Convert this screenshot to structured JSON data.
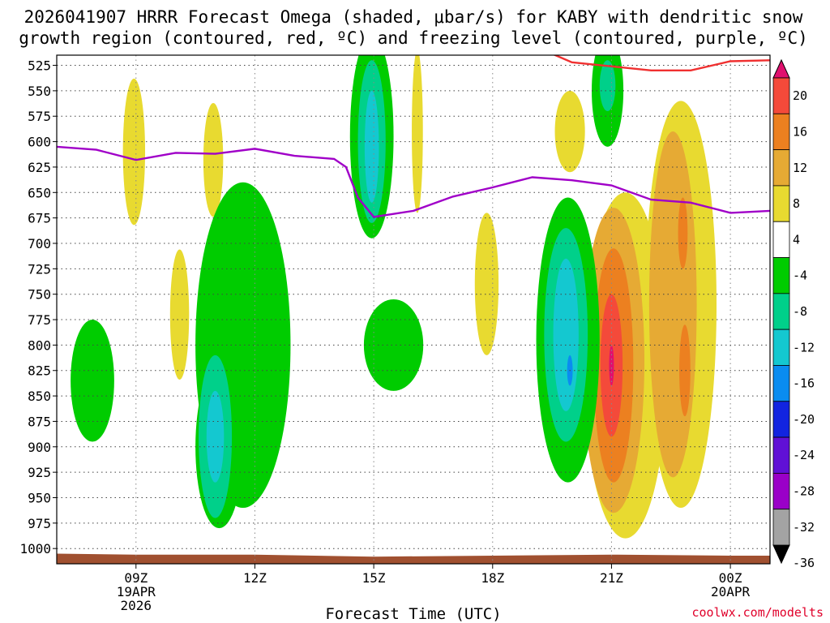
{
  "chart_data": {
    "type": "heatmap",
    "title_line1": "2026041907 HRRR Forecast Omega (shaded, μbar/s) for KABY with dendritic snow",
    "title_line2": "growth region (contoured, red, ºC) and freezing level (contoured, purple, ºC)",
    "xlabel": "Forecast Time (UTC)",
    "ylabel": "",
    "credit": "coolwx.com/modelts",
    "x_range": [
      7.0,
      25.0
    ],
    "y_range": [
      515,
      1015
    ],
    "y_ticks": [
      525,
      550,
      575,
      600,
      625,
      650,
      675,
      700,
      725,
      750,
      775,
      800,
      825,
      850,
      875,
      900,
      925,
      950,
      975,
      1000
    ],
    "y_tick_labels": [
      "525",
      "550",
      "575",
      "600",
      "625",
      "650",
      "675",
      "700",
      "725",
      "750",
      "775",
      "800",
      "825",
      "850",
      "875",
      "900",
      "925",
      "950",
      "975",
      "1000"
    ],
    "x_ticks": [
      {
        "x": 9,
        "lines": [
          "09Z",
          "19APR",
          "2026"
        ]
      },
      {
        "x": 12,
        "lines": [
          "12Z"
        ]
      },
      {
        "x": 15,
        "lines": [
          "15Z"
        ]
      },
      {
        "x": 18,
        "lines": [
          "18Z"
        ]
      },
      {
        "x": 21,
        "lines": [
          "21Z"
        ]
      },
      {
        "x": 24,
        "lines": [
          "00Z",
          "20APR"
        ]
      }
    ],
    "levels": [
      {
        "min": -40,
        "max": -36,
        "color": "#000000"
      },
      {
        "min": -36,
        "max": -32,
        "color": "#a3a3a3"
      },
      {
        "min": -32,
        "max": -28,
        "color": "#9a00c8"
      },
      {
        "min": -28,
        "max": -24,
        "color": "#6010d6"
      },
      {
        "min": -24,
        "max": -20,
        "color": "#1224e0"
      },
      {
        "min": -20,
        "max": -16,
        "color": "#0a8cf0"
      },
      {
        "min": -16,
        "max": -12,
        "color": "#14c8d0"
      },
      {
        "min": -12,
        "max": -8,
        "color": "#00d08a"
      },
      {
        "min": -8,
        "max": -4,
        "color": "#00cc00"
      },
      {
        "min": -4,
        "max": 4,
        "color": "#ffffff"
      },
      {
        "min": 4,
        "max": 8,
        "color": "#e8da30"
      },
      {
        "min": 8,
        "max": 12,
        "color": "#e6aa34"
      },
      {
        "min": 12,
        "max": 16,
        "color": "#ec8020"
      },
      {
        "min": 16,
        "max": 20,
        "color": "#f44a3a"
      },
      {
        "min": 20,
        "max": 24,
        "color": "#e0106e"
      }
    ],
    "colorbar_labels": [
      20,
      16,
      12,
      8,
      4,
      -4,
      -8,
      -12,
      -16,
      -20,
      -24,
      -28,
      -32,
      -36
    ],
    "omega_blobs": [
      {
        "value": 5,
        "x": 8.95,
        "p": 610,
        "rx": 0.28,
        "rp": 72
      },
      {
        "value": 5,
        "x": 10.95,
        "p": 618,
        "rx": 0.25,
        "rp": 56
      },
      {
        "value": 5,
        "x": 10.1,
        "p": 770,
        "rx": 0.24,
        "rp": 64
      },
      {
        "value": 5,
        "x": 16.1,
        "p": 590,
        "rx": 0.14,
        "rp": 80
      },
      {
        "value": 5,
        "x": 17.85,
        "p": 740,
        "rx": 0.3,
        "rp": 70
      },
      {
        "value": 5,
        "x": 19.95,
        "p": 590,
        "rx": 0.38,
        "rp": 40
      },
      {
        "value": 5,
        "x": 21.35,
        "p": 820,
        "rx": 1.05,
        "rp": 170
      },
      {
        "value": 5,
        "x": 22.75,
        "p": 760,
        "rx": 0.9,
        "rp": 200
      },
      {
        "value": 9,
        "x": 21.05,
        "p": 815,
        "rx": 0.78,
        "rp": 150
      },
      {
        "value": 9,
        "x": 22.55,
        "p": 760,
        "rx": 0.6,
        "rp": 170
      },
      {
        "value": 13,
        "x": 21.05,
        "p": 820,
        "rx": 0.5,
        "rp": 115
      },
      {
        "value": 13,
        "x": 22.8,
        "p": 690,
        "rx": 0.12,
        "rp": 35
      },
      {
        "value": 13,
        "x": 22.85,
        "p": 825,
        "rx": 0.14,
        "rp": 45
      },
      {
        "value": 17,
        "x": 21.0,
        "p": 820,
        "rx": 0.28,
        "rp": 70
      },
      {
        "value": 22,
        "x": 21.0,
        "p": 820,
        "rx": 0.06,
        "rp": 20
      },
      {
        "value": -6,
        "x": 7.9,
        "p": 835,
        "rx": 0.55,
        "rp": 60
      },
      {
        "value": -6,
        "x": 11.7,
        "p": 800,
        "rx": 1.2,
        "rp": 160
      },
      {
        "value": -6,
        "x": 11.1,
        "p": 900,
        "rx": 0.6,
        "rp": 80
      },
      {
        "value": -6,
        "x": 15.5,
        "p": 800,
        "rx": 0.75,
        "rp": 45
      },
      {
        "value": -6,
        "x": 14.95,
        "p": 595,
        "rx": 0.55,
        "rp": 100
      },
      {
        "value": -6,
        "x": 19.9,
        "p": 795,
        "rx": 0.8,
        "rp": 140
      },
      {
        "value": -6,
        "x": 20.9,
        "p": 550,
        "rx": 0.4,
        "rp": 55
      },
      {
        "value": -10,
        "x": 11.0,
        "p": 890,
        "rx": 0.42,
        "rp": 80
      },
      {
        "value": -10,
        "x": 14.95,
        "p": 600,
        "rx": 0.35,
        "rp": 80
      },
      {
        "value": -10,
        "x": 19.85,
        "p": 790,
        "rx": 0.55,
        "rp": 105
      },
      {
        "value": -10,
        "x": 20.9,
        "p": 545,
        "rx": 0.2,
        "rp": 25
      },
      {
        "value": -14,
        "x": 11.0,
        "p": 890,
        "rx": 0.22,
        "rp": 45
      },
      {
        "value": -14,
        "x": 14.95,
        "p": 605,
        "rx": 0.18,
        "rp": 55
      },
      {
        "value": -14,
        "x": 19.85,
        "p": 790,
        "rx": 0.32,
        "rp": 75
      },
      {
        "value": -18,
        "x": 19.95,
        "p": 825,
        "rx": 0.07,
        "rp": 15
      }
    ],
    "freezing_level": {
      "color": "#a000c8",
      "x": [
        7.0,
        8.0,
        9.0,
        10.0,
        11.0,
        12.0,
        13.0,
        14.0,
        14.3,
        14.6,
        15.0,
        16.0,
        17.0,
        18.0,
        19.0,
        20.0,
        21.0,
        22.0,
        23.0,
        24.0,
        25.0
      ],
      "p": [
        605,
        608,
        618,
        611,
        612,
        607,
        614,
        617,
        625,
        655,
        674,
        668,
        654,
        645,
        635,
        638,
        643,
        657,
        660,
        670,
        668
      ]
    },
    "dgz_top": {
      "color": "#f03030",
      "x": [
        19.4,
        20.0,
        21.0,
        22.0,
        23.0,
        24.0,
        25.0
      ],
      "p": [
        512,
        522,
        526,
        530,
        530,
        521,
        520
      ]
    },
    "surface_pressure": {
      "color": "#a05030",
      "x": [
        7.0,
        9.0,
        12.0,
        15.0,
        18.0,
        21.0,
        24.0,
        25.0
      ],
      "p": [
        1005,
        1006,
        1006,
        1008,
        1007,
        1006,
        1007,
        1007
      ]
    }
  }
}
